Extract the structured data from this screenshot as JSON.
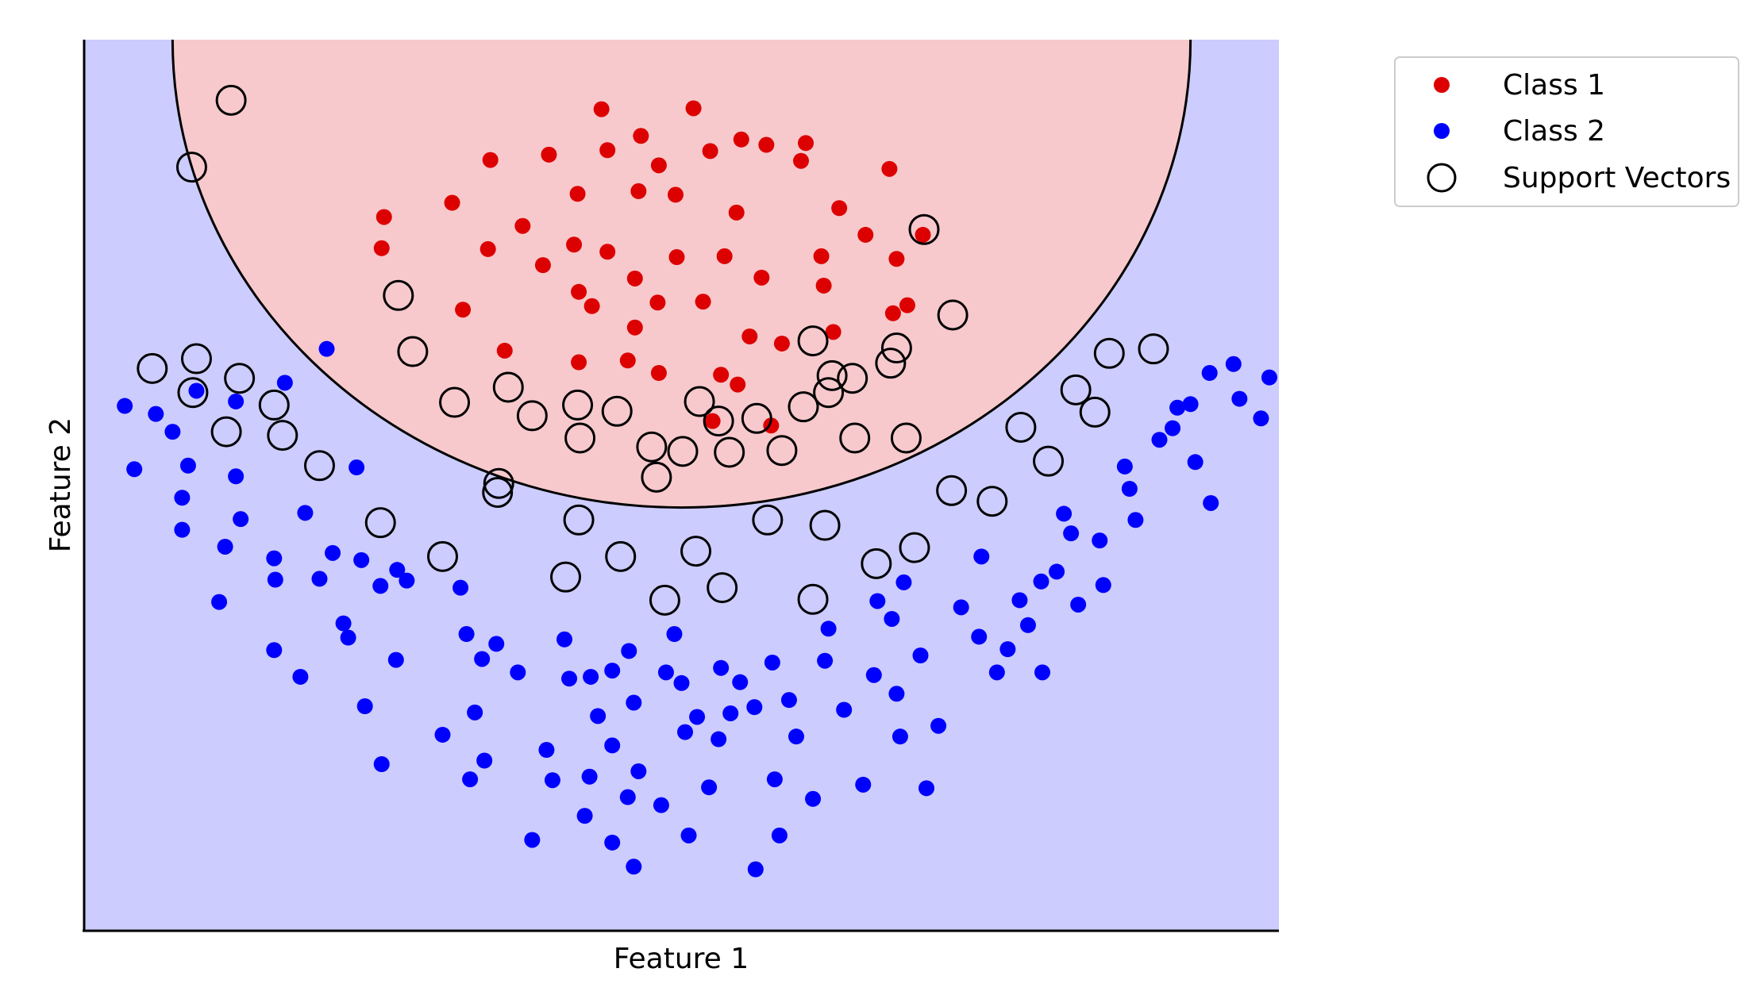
{
  "chart_data": {
    "type": "scatter",
    "title": "",
    "xlabel": "Feature 1",
    "ylabel": "Feature 2",
    "xlim": [
      0,
      100
    ],
    "ylim": [
      0,
      100
    ],
    "ticks": "none",
    "grid": false,
    "legend_position": "outside-top-right",
    "colors": {
      "class1": "#dd0000",
      "class2": "#0000ff",
      "region1": "#f7c9cc",
      "region2": "#ccccff"
    },
    "decision_boundary": {
      "shape": "circle",
      "center": [
        50,
        100
      ],
      "radius_x": 42.6,
      "radius_y": 52.5
    },
    "legend": [
      {
        "label": "Class 1",
        "marker": "red-dot"
      },
      {
        "label": "Class 2",
        "marker": "blue-dot"
      },
      {
        "label": "Support Vectors",
        "marker": "hollow-circle"
      }
    ],
    "series": [
      {
        "name": "Class 1",
        "points": [
          [
            43.3,
            92.2
          ],
          [
            51.0,
            92.3
          ],
          [
            46.6,
            89.2
          ],
          [
            34.0,
            86.5
          ],
          [
            38.9,
            87.1
          ],
          [
            55.0,
            88.8
          ],
          [
            60.4,
            88.4
          ],
          [
            48.1,
            85.9
          ],
          [
            43.8,
            87.6
          ],
          [
            52.4,
            87.5
          ],
          [
            46.4,
            83.0
          ],
          [
            41.3,
            82.7
          ],
          [
            30.8,
            81.7
          ],
          [
            36.7,
            79.1
          ],
          [
            49.5,
            82.6
          ],
          [
            57.1,
            88.2
          ],
          [
            60.0,
            86.4
          ],
          [
            67.4,
            85.5
          ],
          [
            54.6,
            80.6
          ],
          [
            63.2,
            81.1
          ],
          [
            24.9,
            76.6
          ],
          [
            33.8,
            76.5
          ],
          [
            41.0,
            77.0
          ],
          [
            43.8,
            76.2
          ],
          [
            46.1,
            73.2
          ],
          [
            41.4,
            71.7
          ],
          [
            49.6,
            75.6
          ],
          [
            53.6,
            75.7
          ],
          [
            56.7,
            73.3
          ],
          [
            61.7,
            75.7
          ],
          [
            65.4,
            78.1
          ],
          [
            70.2,
            78.1
          ],
          [
            25.1,
            80.1
          ],
          [
            31.7,
            69.7
          ],
          [
            35.2,
            65.1
          ],
          [
            38.4,
            74.7
          ],
          [
            42.5,
            70.1
          ],
          [
            46.1,
            67.7
          ],
          [
            48.0,
            70.5
          ],
          [
            51.8,
            70.6
          ],
          [
            55.7,
            66.7
          ],
          [
            58.4,
            65.9
          ],
          [
            61.9,
            72.4
          ],
          [
            62.7,
            67.2
          ],
          [
            67.7,
            69.3
          ],
          [
            68.0,
            75.4
          ],
          [
            41.4,
            63.8
          ],
          [
            45.5,
            64.0
          ],
          [
            48.1,
            62.6
          ],
          [
            53.3,
            62.4
          ],
          [
            68.9,
            70.2
          ],
          [
            52.6,
            57.2
          ],
          [
            57.5,
            56.7
          ],
          [
            54.7,
            61.3
          ]
        ]
      },
      {
        "name": "Class 2",
        "points": [
          [
            3.4,
            58.9
          ],
          [
            4.2,
            51.8
          ],
          [
            7.4,
            56.0
          ],
          [
            8.7,
            52.2
          ],
          [
            8.2,
            48.6
          ],
          [
            12.7,
            51.0
          ],
          [
            13.1,
            46.2
          ],
          [
            8.2,
            45.0
          ],
          [
            11.8,
            43.1
          ],
          [
            15.9,
            41.8
          ],
          [
            11.3,
            36.9
          ],
          [
            16.0,
            39.4
          ],
          [
            18.5,
            46.9
          ],
          [
            19.7,
            39.5
          ],
          [
            23.2,
            41.6
          ],
          [
            20.8,
            42.4
          ],
          [
            26.2,
            40.5
          ],
          [
            21.7,
            34.5
          ],
          [
            27.0,
            39.3
          ],
          [
            31.5,
            38.5
          ],
          [
            15.9,
            31.5
          ],
          [
            18.1,
            28.5
          ],
          [
            22.1,
            32.9
          ],
          [
            23.5,
            25.2
          ],
          [
            26.1,
            30.4
          ],
          [
            24.8,
            38.7
          ],
          [
            32.0,
            33.3
          ],
          [
            34.5,
            32.2
          ],
          [
            33.3,
            30.5
          ],
          [
            36.3,
            29.0
          ],
          [
            32.7,
            24.5
          ],
          [
            40.2,
            32.7
          ],
          [
            40.6,
            28.3
          ],
          [
            42.4,
            28.5
          ],
          [
            43.0,
            24.1
          ],
          [
            38.7,
            20.3
          ],
          [
            39.2,
            16.9
          ],
          [
            33.5,
            19.1
          ],
          [
            30.0,
            22.0
          ],
          [
            24.9,
            18.7
          ],
          [
            42.3,
            17.3
          ],
          [
            41.9,
            12.9
          ],
          [
            37.5,
            10.2
          ],
          [
            32.3,
            17.0
          ],
          [
            45.6,
            31.4
          ],
          [
            44.2,
            29.2
          ],
          [
            46.0,
            25.6
          ],
          [
            44.2,
            20.8
          ],
          [
            46.4,
            17.9
          ],
          [
            45.5,
            15.0
          ],
          [
            49.4,
            33.3
          ],
          [
            48.7,
            29.0
          ],
          [
            50.0,
            27.8
          ],
          [
            51.3,
            24.0
          ],
          [
            50.3,
            22.3
          ],
          [
            48.3,
            14.1
          ],
          [
            44.2,
            9.9
          ],
          [
            46.0,
            7.2
          ],
          [
            50.6,
            10.7
          ],
          [
            52.3,
            16.1
          ],
          [
            53.1,
            21.5
          ],
          [
            54.1,
            24.4
          ],
          [
            54.9,
            27.9
          ],
          [
            53.3,
            29.5
          ],
          [
            57.6,
            30.1
          ],
          [
            56.1,
            25.1
          ],
          [
            59.0,
            25.9
          ],
          [
            57.8,
            17.0
          ],
          [
            59.6,
            21.8
          ],
          [
            62.0,
            30.3
          ],
          [
            62.3,
            33.9
          ],
          [
            63.6,
            24.8
          ],
          [
            61.0,
            14.8
          ],
          [
            66.1,
            28.7
          ],
          [
            68.0,
            26.6
          ],
          [
            68.6,
            39.1
          ],
          [
            66.4,
            37.0
          ],
          [
            67.6,
            35.0
          ],
          [
            70.0,
            30.9
          ],
          [
            68.3,
            21.8
          ],
          [
            70.5,
            16.0
          ],
          [
            65.2,
            16.4
          ],
          [
            58.2,
            10.7
          ],
          [
            56.2,
            6.9
          ],
          [
            71.5,
            23.0
          ],
          [
            73.4,
            36.3
          ],
          [
            75.1,
            42.0
          ],
          [
            74.9,
            33.0
          ],
          [
            76.4,
            29.0
          ],
          [
            77.3,
            31.6
          ],
          [
            78.3,
            37.1
          ],
          [
            79.0,
            34.3
          ],
          [
            80.1,
            39.2
          ],
          [
            80.2,
            29.0
          ],
          [
            82.0,
            46.8
          ],
          [
            82.6,
            44.6
          ],
          [
            81.4,
            40.3
          ],
          [
            83.2,
            36.6
          ],
          [
            85.0,
            43.8
          ],
          [
            85.3,
            38.8
          ],
          [
            87.1,
            52.1
          ],
          [
            87.5,
            49.6
          ],
          [
            88.0,
            46.1
          ],
          [
            90.0,
            55.1
          ],
          [
            91.1,
            56.4
          ],
          [
            91.5,
            58.7
          ],
          [
            92.6,
            59.1
          ],
          [
            93.0,
            52.6
          ],
          [
            94.2,
            62.6
          ],
          [
            94.3,
            48.0
          ],
          [
            96.2,
            63.6
          ],
          [
            96.7,
            59.7
          ],
          [
            99.2,
            62.1
          ],
          [
            98.5,
            57.5
          ],
          [
            20.3,
            65.3
          ],
          [
            16.8,
            61.5
          ],
          [
            12.7,
            59.4
          ],
          [
            9.4,
            60.6
          ],
          [
            6.0,
            58.0
          ],
          [
            22.8,
            52.0
          ]
        ]
      }
    ],
    "support_vectors": [
      [
        12.3,
        93.2
      ],
      [
        9.0,
        85.7
      ],
      [
        26.3,
        71.3
      ],
      [
        27.5,
        65.0
      ],
      [
        31.0,
        59.3
      ],
      [
        35.5,
        61.0
      ],
      [
        37.5,
        57.8
      ],
      [
        41.3,
        59.0
      ],
      [
        41.5,
        55.3
      ],
      [
        44.6,
        58.3
      ],
      [
        47.5,
        54.3
      ],
      [
        50.1,
        53.8
      ],
      [
        51.5,
        59.4
      ],
      [
        53.1,
        57.2
      ],
      [
        54.0,
        53.7
      ],
      [
        56.3,
        57.5
      ],
      [
        58.4,
        53.9
      ],
      [
        60.2,
        58.8
      ],
      [
        62.6,
        62.3
      ],
      [
        64.3,
        62.0
      ],
      [
        68.0,
        65.4
      ],
      [
        68.8,
        55.3
      ],
      [
        64.5,
        55.3
      ],
      [
        61.0,
        66.2
      ],
      [
        62.3,
        60.4
      ],
      [
        67.5,
        63.7
      ],
      [
        72.7,
        69.1
      ],
      [
        70.3,
        78.7
      ],
      [
        47.9,
        50.9
      ],
      [
        41.4,
        46.1
      ],
      [
        34.7,
        50.2
      ],
      [
        5.7,
        63.1
      ],
      [
        9.4,
        64.2
      ],
      [
        13.0,
        62.0
      ],
      [
        9.1,
        60.4
      ],
      [
        15.9,
        59.0
      ],
      [
        11.9,
        56.0
      ],
      [
        16.6,
        55.6
      ],
      [
        19.7,
        52.2
      ],
      [
        24.8,
        45.8
      ],
      [
        30.0,
        42.0
      ],
      [
        34.6,
        49.2
      ],
      [
        40.3,
        39.7
      ],
      [
        44.9,
        42.0
      ],
      [
        48.6,
        37.1
      ],
      [
        51.2,
        42.6
      ],
      [
        53.4,
        38.5
      ],
      [
        57.2,
        46.1
      ],
      [
        62.0,
        45.5
      ],
      [
        61.0,
        37.2
      ],
      [
        66.3,
        41.2
      ],
      [
        69.5,
        43.0
      ],
      [
        72.6,
        49.4
      ],
      [
        76.0,
        48.2
      ],
      [
        78.4,
        56.5
      ],
      [
        80.7,
        52.7
      ],
      [
        83.0,
        60.7
      ],
      [
        84.6,
        58.2
      ],
      [
        85.8,
        64.8
      ],
      [
        89.5,
        65.3
      ]
    ]
  }
}
